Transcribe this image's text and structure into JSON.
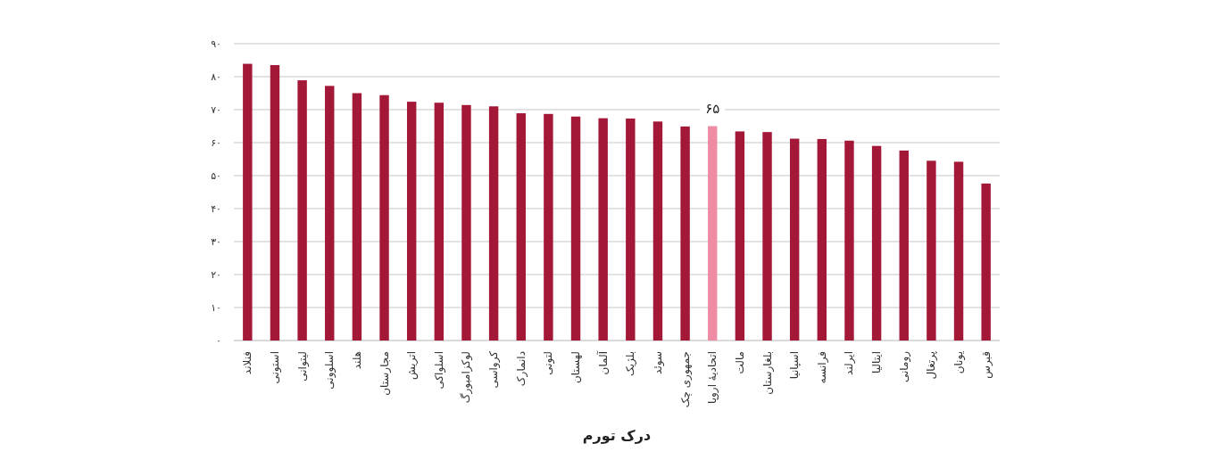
{
  "chart_data": {
    "type": "bar",
    "xlabel": "درک تورم",
    "categories": [
      "فنلاند",
      "استونی",
      "لیتوانی",
      "اسلوونی",
      "هلند",
      "مجارستان",
      "اتریش",
      "اسلواکی",
      "لوکزامبورگ",
      "کرواسی",
      "دانمارک",
      "لتونی",
      "لهستان",
      "آلمان",
      "بلژیک",
      "سوئد",
      "جمهوری چک",
      "اتحادیهٔ اروپا",
      "مالت",
      "بلغارستان",
      "اسپانیا",
      "فرانسه",
      "ایرلند",
      "ایتالیا",
      "رومانی",
      "پرتغال",
      "یونان",
      "قبرس"
    ],
    "values": [
      83.9,
      83.5,
      78.9,
      77.2,
      75.0,
      74.4,
      72.4,
      72.1,
      71.4,
      71.0,
      68.9,
      68.7,
      67.9,
      67.4,
      67.3,
      66.4,
      64.9,
      65,
      63.4,
      63.2,
      61.2,
      61.1,
      60.6,
      59.0,
      57.6,
      54.5,
      54.2,
      47.6
    ],
    "colors": [
      "#a31737",
      "#a31737",
      "#a31737",
      "#a31737",
      "#a31737",
      "#a31737",
      "#a31737",
      "#a31737",
      "#a31737",
      "#a31737",
      "#a31737",
      "#a31737",
      "#a31737",
      "#a31737",
      "#a31737",
      "#a31737",
      "#a31737",
      "#ee8ca3",
      "#a31737",
      "#a31737",
      "#a31737",
      "#a31737",
      "#a31737",
      "#a31737",
      "#a31737",
      "#a31737",
      "#a31737",
      "#a31737"
    ],
    "value_labels": [
      null,
      null,
      null,
      null,
      null,
      null,
      null,
      null,
      null,
      null,
      null,
      null,
      null,
      null,
      null,
      null,
      null,
      "۶۵",
      null,
      null,
      null,
      null,
      null,
      null,
      null,
      null,
      null,
      null
    ],
    "ylim": [
      0,
      90
    ],
    "yticks": [
      {
        "value": 0,
        "label": "۰"
      },
      {
        "value": 10,
        "label": "۱۰"
      },
      {
        "value": 20,
        "label": "۲۰"
      },
      {
        "value": 30,
        "label": "۳۰"
      },
      {
        "value": 40,
        "label": "۴۰"
      },
      {
        "value": 50,
        "label": "۵۰"
      },
      {
        "value": 60,
        "label": "۶۰"
      },
      {
        "value": 70,
        "label": "۷۰"
      },
      {
        "value": 80,
        "label": "۸۰"
      },
      {
        "value": 90,
        "label": "۹۰"
      }
    ],
    "grid": "y"
  }
}
